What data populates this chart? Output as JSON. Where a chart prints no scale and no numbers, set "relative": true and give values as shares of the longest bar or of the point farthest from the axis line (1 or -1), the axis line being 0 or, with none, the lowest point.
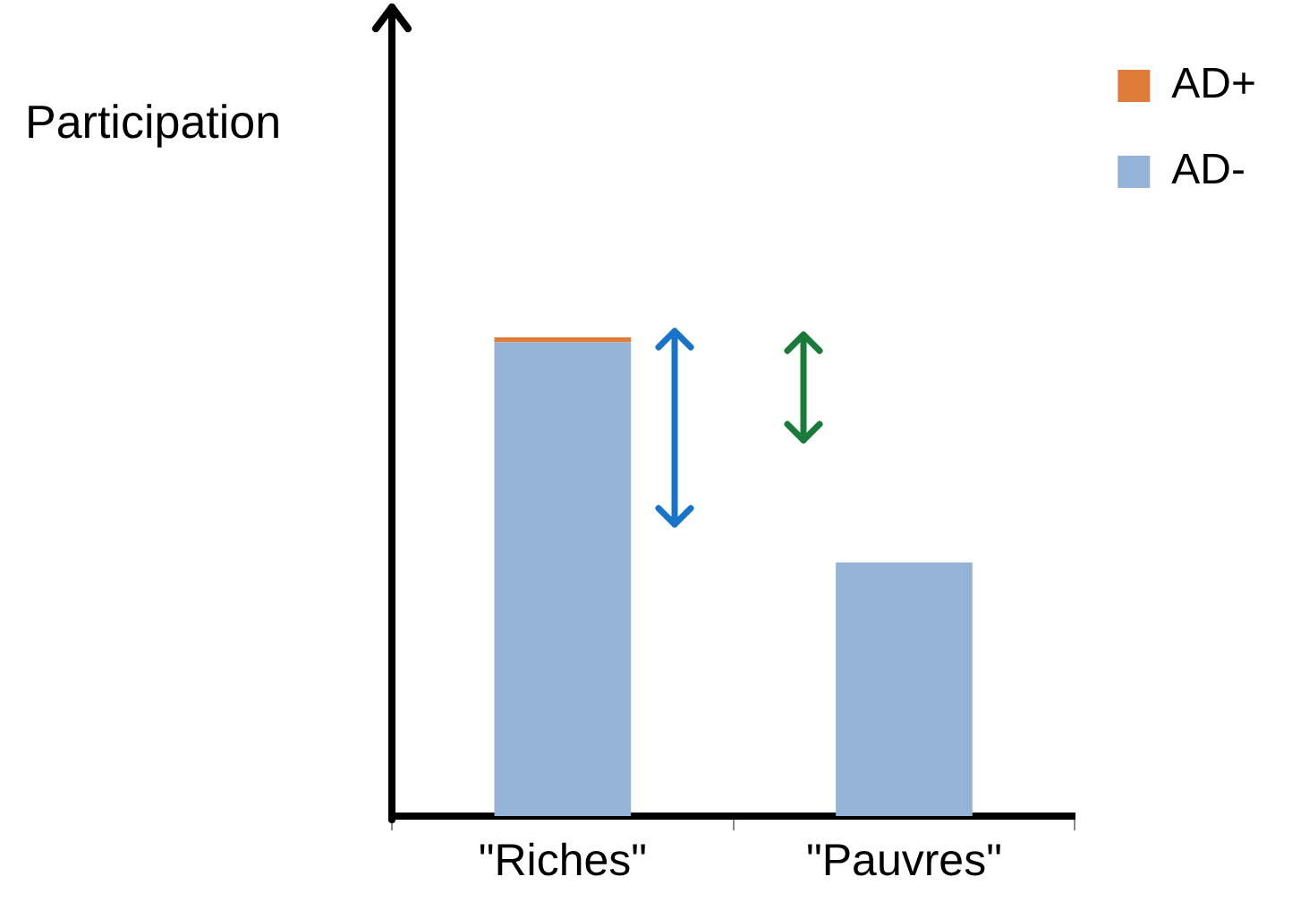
{
  "chart_data": {
    "type": "bar",
    "ylabel": "Participation",
    "categories": [
      "\"Riches\"",
      "\"Pauvres\""
    ],
    "stacked": true,
    "relative": true,
    "legend": "top right",
    "series": [
      {
        "name": "AD-",
        "color": "#95b3d7",
        "values": [
          0.99,
          0.53
        ]
      },
      {
        "name": "AD+",
        "color": "#e07b39",
        "values": [
          0.01,
          0
        ]
      }
    ]
  }
}
